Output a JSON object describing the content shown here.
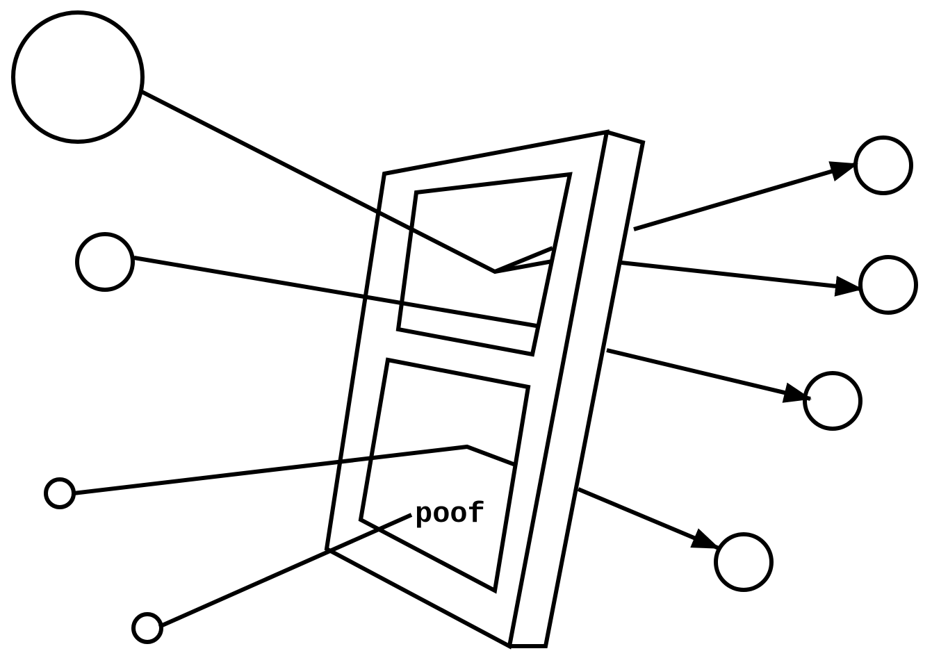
{
  "diagram": {
    "label_poof": "poof",
    "stroke_color": "#000000",
    "background_color": "#ffffff"
  }
}
